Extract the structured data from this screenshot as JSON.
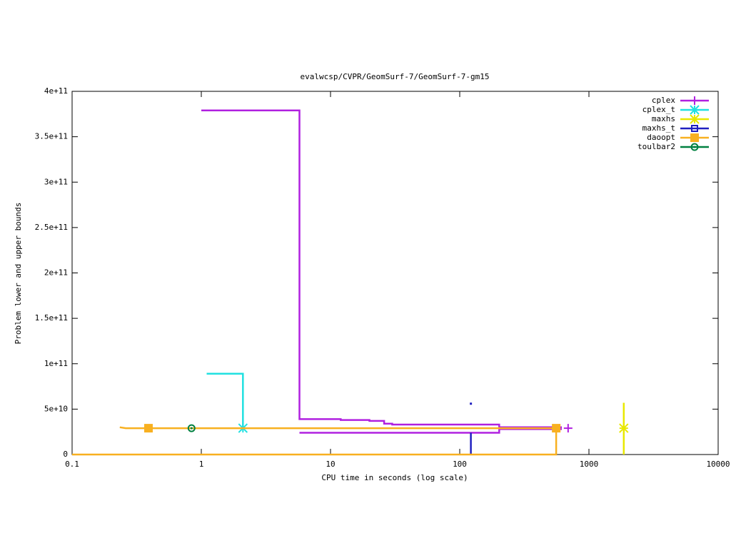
{
  "chart_data": {
    "type": "line",
    "title": "evalwcsp/CVPR/GeomSurf-7/GeomSurf-7-gm15",
    "xlabel": "CPU time in seconds (log scale)",
    "ylabel": "Problem lower and upper bounds",
    "xscale": "log",
    "xlim": [
      0.1,
      10000
    ],
    "xticks": [
      0.1,
      1,
      10,
      100,
      1000,
      10000
    ],
    "ylim": [
      0,
      400000000000
    ],
    "yticks": [
      0,
      {
        "value": 50000000000,
        "label": "5e+10"
      },
      {
        "value": 100000000000,
        "label": "1e+11"
      },
      {
        "value": 150000000000,
        "label": "1.5e+11"
      },
      {
        "value": 200000000000,
        "label": "2e+11"
      },
      {
        "value": 250000000000,
        "label": "2.5e+11"
      },
      {
        "value": 300000000000,
        "label": "3e+11"
      },
      {
        "value": 350000000000,
        "label": "3.5e+11"
      },
      {
        "value": 400000000000,
        "label": "4e+11"
      }
    ],
    "legend": "top-right",
    "series": [
      {
        "name": "cplex",
        "color": "#b020e0",
        "marker": "plus",
        "x": [
          1,
          5.75,
          5.75,
          12,
          12,
          20,
          20,
          26,
          26,
          30,
          30,
          202,
          202,
          617,
          null,
          5.75,
          202,
          202,
          617
        ],
        "values": [
          379000000000,
          379000000000,
          39000000000,
          39000000000,
          38000000000,
          38000000000,
          37000000000,
          37000000000,
          34000000000,
          34000000000,
          33000000000,
          33000000000,
          30000000000,
          30000000000,
          null,
          24000000000,
          24000000000,
          28000000000,
          28000000000
        ],
        "marker_x": [
          690
        ],
        "marker_values": [
          29000000000
        ]
      },
      {
        "name": "cplex_t",
        "color": "#20e0e0",
        "marker": "star",
        "x": [
          1.1,
          2.1,
          2.1
        ],
        "values": [
          89000000000,
          89000000000,
          29000000000
        ],
        "marker_x": [
          2.1
        ],
        "marker_values": [
          29000000000
        ]
      },
      {
        "name": "maxhs",
        "color": "#e8e800",
        "marker": "star",
        "x": [
          1860,
          1860
        ],
        "values": [
          0,
          57000000000
        ],
        "marker_x": [
          1860
        ],
        "marker_values": [
          29000000000
        ]
      },
      {
        "name": "maxhs_t",
        "color": "#2020c0",
        "marker": "box",
        "x": [
          122,
          122,
          null,
          122
        ],
        "values": [
          0,
          24000000000,
          null,
          56000000000
        ],
        "marker_x": [],
        "marker_values": []
      },
      {
        "name": "daoopt",
        "color": "#f8b020",
        "marker": "filledbox",
        "x": [
          0.1,
          558,
          558,
          null,
          0.234,
          0.26,
          558
        ],
        "values": [
          0,
          0,
          29000000000,
          null,
          30000000000,
          29000000000,
          29000000000
        ],
        "marker_x": [
          0.39,
          558
        ],
        "marker_values": [
          29000000000,
          29000000000
        ]
      },
      {
        "name": "toulbar2",
        "color": "#008040",
        "marker": "circle",
        "x": [],
        "values": [],
        "marker_x": [
          0.84
        ],
        "marker_values": [
          29000000000
        ]
      }
    ]
  }
}
